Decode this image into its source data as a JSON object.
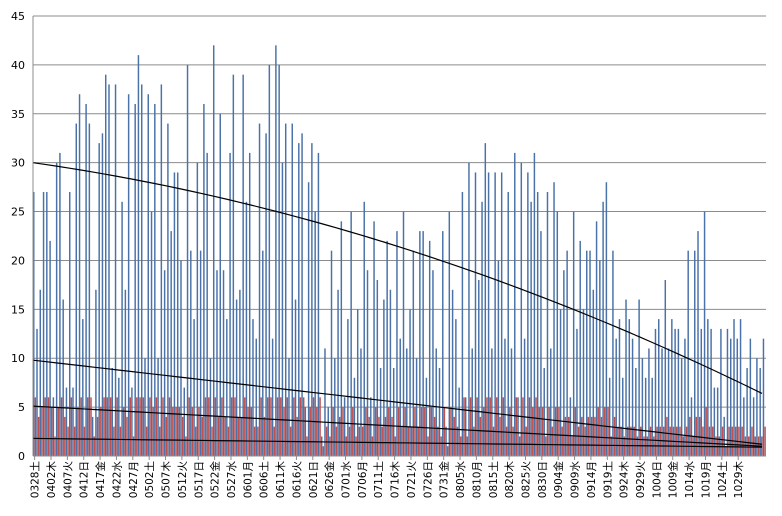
{
  "chart_data": {
    "type": "bar",
    "title": "",
    "xlabel": "",
    "ylabel": "",
    "ylim": [
      0,
      45
    ],
    "y_ticks": [
      0,
      5,
      10,
      15,
      20,
      25,
      30,
      35,
      40,
      45
    ],
    "grid": "horizontal",
    "legend": "none",
    "x_tick_labels": [
      "0328土",
      "0402木",
      "0407火",
      "0412日",
      "0417金",
      "0422水",
      "0427月",
      "0502土",
      "0507木",
      "0512火",
      "0517日",
      "0522金",
      "0527水",
      "0601月",
      "0606土",
      "0611木",
      "0616火",
      "0621日",
      "0626金",
      "0701水",
      "0706月",
      "0711土",
      "0716木",
      "0721火",
      "0726日",
      "0731金",
      "0805水",
      "0810月",
      "0815土",
      "0820木",
      "0825火",
      "0830日",
      "0904金",
      "0909水",
      "0914月",
      "0919土",
      "0924木",
      "0929火",
      "1004日",
      "1009金",
      "1014水",
      "1019月",
      "1024土",
      "1029木"
    ],
    "days_per_tick": 5,
    "series": [
      {
        "color": "#4a72a8",
        "values": [
          27,
          13,
          17,
          27,
          27,
          22,
          6,
          30,
          31,
          16,
          7,
          27,
          7,
          34,
          37,
          14,
          36,
          34,
          4,
          17,
          32,
          33,
          39,
          38,
          9,
          38,
          8,
          26,
          17,
          37,
          7,
          36,
          41,
          38,
          10,
          37,
          25,
          36,
          10,
          38,
          19,
          34,
          23,
          29,
          29,
          20,
          7,
          40,
          21,
          14,
          30,
          21,
          36,
          31,
          10,
          42,
          19,
          35,
          19,
          14,
          31,
          39,
          16,
          17,
          39,
          26,
          31,
          14,
          12,
          34,
          21,
          33,
          40,
          12,
          42,
          40,
          30,
          34,
          10,
          34,
          16,
          32,
          33,
          5,
          28,
          32,
          25,
          31,
          2,
          11,
          5,
          21,
          10,
          17,
          24,
          6,
          14,
          25,
          8,
          15,
          11,
          26,
          19,
          6,
          24,
          18,
          9,
          16,
          22,
          17,
          9,
          23,
          12,
          25,
          11,
          15,
          21,
          10,
          23,
          23,
          8,
          22,
          19,
          11,
          9,
          23,
          3,
          25,
          17,
          14,
          7,
          27,
          6,
          30,
          11,
          29,
          18,
          26,
          32,
          29,
          11,
          29,
          20,
          29,
          12,
          27,
          11,
          31,
          6,
          30,
          12,
          29,
          26,
          31,
          27,
          23,
          9,
          27,
          11,
          28,
          25,
          15,
          19,
          21,
          6,
          25,
          13,
          22,
          15,
          21,
          21,
          17,
          24,
          20,
          26,
          28,
          8,
          21,
          12,
          14,
          8,
          16,
          14,
          12,
          9,
          16,
          10,
          8,
          11,
          8,
          13,
          14,
          11,
          18,
          11,
          14,
          13,
          13,
          10,
          12,
          21,
          6,
          21,
          23,
          13,
          25,
          14,
          13,
          7,
          7,
          13,
          4,
          13,
          12,
          14,
          12,
          14,
          6,
          9,
          12,
          6,
          10,
          9,
          12
        ]
      },
      {
        "color": "#c0504d",
        "values": [
          6,
          4,
          5,
          6,
          6,
          5,
          2,
          5,
          6,
          4,
          3,
          6,
          3,
          5,
          6,
          3,
          6,
          6,
          2,
          4,
          5,
          6,
          6,
          6,
          3,
          6,
          3,
          5,
          4,
          6,
          2,
          6,
          6,
          6,
          3,
          6,
          5,
          6,
          3,
          6,
          4,
          6,
          5,
          5,
          5,
          4,
          2,
          6,
          5,
          3,
          5,
          4,
          6,
          6,
          3,
          6,
          4,
          6,
          4,
          3,
          6,
          6,
          4,
          4,
          6,
          5,
          5,
          3,
          3,
          6,
          4,
          6,
          6,
          3,
          6,
          6,
          5,
          6,
          3,
          6,
          4,
          6,
          6,
          2,
          5,
          6,
          5,
          6,
          1,
          3,
          2,
          5,
          3,
          4,
          5,
          2,
          3,
          5,
          2,
          3,
          3,
          5,
          4,
          2,
          5,
          4,
          3,
          4,
          5,
          4,
          2,
          5,
          3,
          5,
          3,
          3,
          5,
          3,
          5,
          5,
          2,
          5,
          4,
          3,
          2,
          5,
          1,
          5,
          4,
          3,
          2,
          6,
          2,
          6,
          3,
          6,
          4,
          5,
          6,
          6,
          3,
          6,
          4,
          6,
          3,
          5,
          3,
          6,
          2,
          6,
          3,
          6,
          5,
          6,
          5,
          5,
          2,
          5,
          3,
          5,
          5,
          3,
          4,
          4,
          2,
          5,
          3,
          4,
          3,
          4,
          4,
          4,
          5,
          4,
          5,
          5,
          2,
          4,
          3,
          3,
          2,
          3,
          3,
          3,
          2,
          3,
          2,
          2,
          3,
          2,
          3,
          3,
          3,
          4,
          3,
          3,
          3,
          3,
          2,
          3,
          4,
          2,
          4,
          4,
          3,
          5,
          3,
          3,
          2,
          2,
          3,
          1,
          3,
          3,
          3,
          3,
          3,
          2,
          2,
          3,
          2,
          2,
          2,
          3
        ]
      }
    ],
    "trendlines": [
      {
        "color": "#000000",
        "start": 30,
        "end": 6.4,
        "shape": "polynomial"
      },
      {
        "color": "#000000",
        "start": 9.8,
        "end": 1.2,
        "shape": "linear"
      },
      {
        "color": "#000000",
        "start": 5.1,
        "end": 1.0,
        "shape": "linear"
      },
      {
        "color": "#000000",
        "start": 1.8,
        "end": 0.9,
        "shape": "linear"
      }
    ]
  }
}
